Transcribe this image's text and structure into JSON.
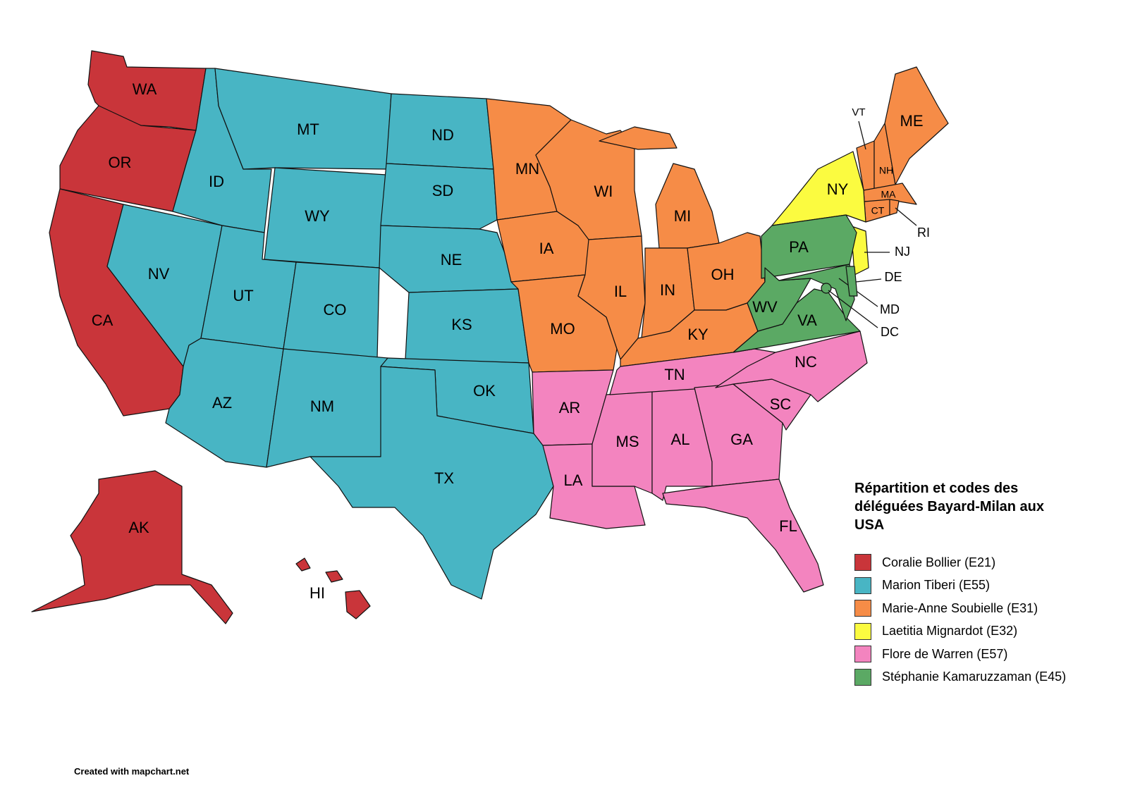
{
  "legend": {
    "title": "Répartition et codes des déléguées Bayard-Milan aux USA",
    "entries": [
      {
        "name": "Coralie Bollier (E21)",
        "color": "#c9353a",
        "states": [
          "WA",
          "OR",
          "CA",
          "AK",
          "HI"
        ]
      },
      {
        "name": "Marion Tiberi (E55)",
        "color": "#48b5c4",
        "states": [
          "ID",
          "MT",
          "WY",
          "NV",
          "UT",
          "CO",
          "AZ",
          "NM",
          "ND",
          "SD",
          "NE",
          "KS",
          "OK",
          "TX"
        ]
      },
      {
        "name": "Marie-Anne Soubielle (E31)",
        "color": "#f68c47",
        "states": [
          "MN",
          "IA",
          "MO",
          "WI",
          "IL",
          "MI",
          "IN",
          "OH",
          "KY",
          "VT",
          "NH",
          "ME",
          "MA",
          "CT",
          "RI"
        ]
      },
      {
        "name": "Laetitia Mignardot (E32)",
        "color": "#fbfb40",
        "states": [
          "NY",
          "NJ"
        ]
      },
      {
        "name": "Flore de Warren (E57)",
        "color": "#f384bf",
        "states": [
          "AR",
          "LA",
          "MS",
          "AL",
          "TN",
          "GA",
          "FL",
          "SC",
          "NC"
        ]
      },
      {
        "name": "Stéphanie Kamaruzzaman (E45)",
        "color": "#5ba964",
        "states": [
          "PA",
          "WV",
          "VA",
          "MD",
          "DE",
          "DC"
        ]
      }
    ]
  },
  "credit": "Created with mapchart.net"
}
